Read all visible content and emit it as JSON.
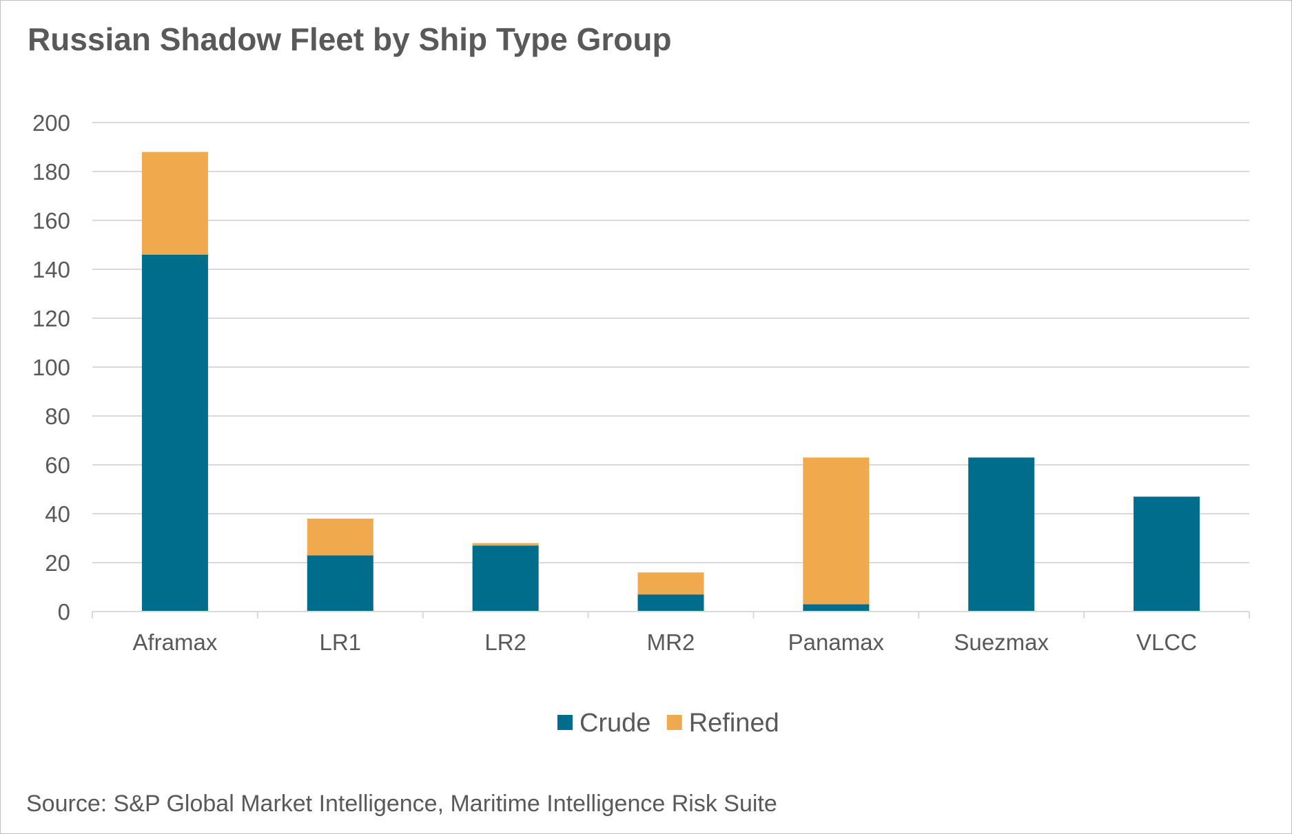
{
  "chart_data": {
    "type": "bar",
    "stacked": true,
    "title": "Russian Shadow Fleet by Ship Type Group",
    "categories": [
      "Aframax",
      "LR1",
      "LR2",
      "MR2",
      "Panamax",
      "Suezmax",
      "VLCC"
    ],
    "series": [
      {
        "name": "Crude",
        "color": "#006d8c",
        "values": [
          146,
          23,
          27,
          7,
          3,
          63,
          47
        ]
      },
      {
        "name": "Refined",
        "color": "#f0a94c",
        "values": [
          42,
          15,
          1,
          9,
          60,
          0,
          0
        ]
      }
    ],
    "ylim": [
      0,
      200
    ],
    "yticks": [
      0,
      20,
      40,
      60,
      80,
      100,
      120,
      140,
      160,
      180,
      200
    ],
    "xlabel": "",
    "ylabel": "",
    "grid": true,
    "legend_position": "bottom",
    "source": "Source: S&P Global Market Intelligence, Maritime Intelligence Risk Suite"
  }
}
